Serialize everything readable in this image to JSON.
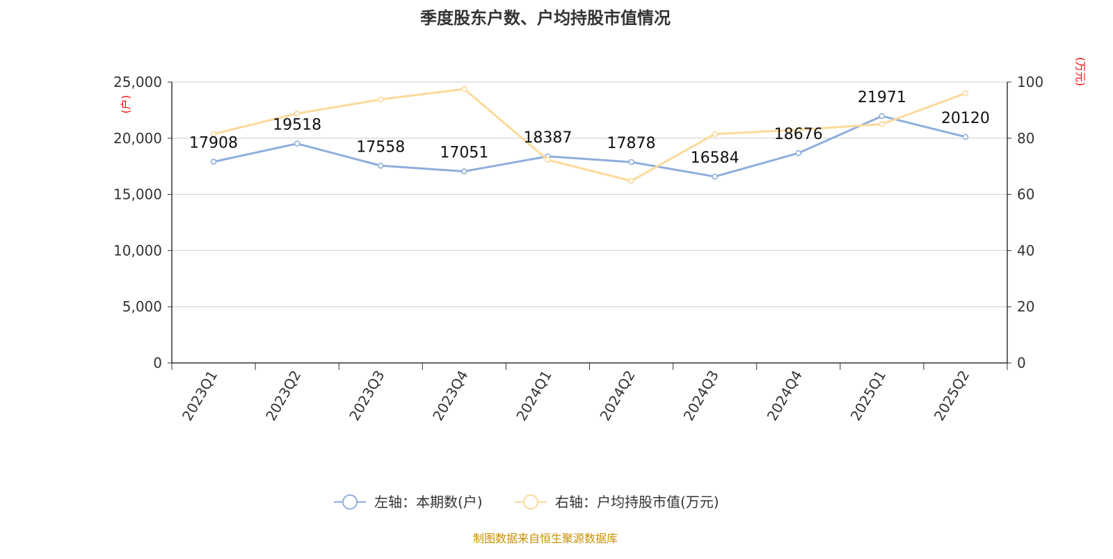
{
  "chart_data": {
    "type": "line",
    "title": "季度股东户数、户均持股市值情况",
    "categories": [
      "2023Q1",
      "2023Q2",
      "2023Q3",
      "2023Q4",
      "2024Q1",
      "2024Q2",
      "2024Q3",
      "2024Q4",
      "2025Q1",
      "2025Q2"
    ],
    "left_axis": {
      "unit": "(户)",
      "ylim": [
        0,
        25000
      ],
      "ticks": [
        "0",
        "5,000",
        "10,000",
        "15,000",
        "20,000",
        "25,000"
      ]
    },
    "right_axis": {
      "unit": "(万元)",
      "ylim": [
        0,
        100
      ],
      "ticks": [
        "0",
        "20",
        "40",
        "60",
        "80",
        "100"
      ]
    },
    "series": [
      {
        "name": "左轴：本期数(户)",
        "axis": "left",
        "color": "#8eaedc",
        "values": [
          17908,
          19518,
          17558,
          17051,
          18387,
          17878,
          16584,
          18676,
          21971,
          20120
        ],
        "labels": [
          "17908",
          "19518",
          "17558",
          "17051",
          "18387",
          "17878",
          "16584",
          "18676",
          "21971",
          "20120"
        ]
      },
      {
        "name": "右轴：户均持股市值(万元)",
        "axis": "right",
        "color": "#fcd99a",
        "values": [
          81.5,
          88.8,
          93.8,
          97.5,
          72.3,
          64.8,
          81.5,
          83.0,
          85.0,
          96.0
        ]
      }
    ],
    "grid": true,
    "legend": "bottom-center"
  },
  "source": "制图数据来自恒生聚源数据库"
}
